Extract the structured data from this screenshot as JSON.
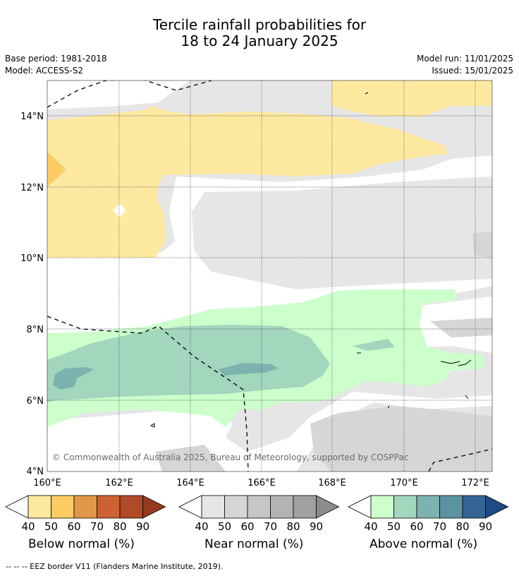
{
  "title": {
    "line1": "Tercile rainfall probabilities for",
    "line2": "18 to 24 January 2025"
  },
  "meta": {
    "base_period": "Base period: 1981-2018",
    "model": "Model: ACCESS-S2",
    "model_run": "Model run: 11/01/2025",
    "issued": "Issued: 15/01/2025"
  },
  "map": {
    "lat_labels": [
      "14°N",
      "12°N",
      "10°N",
      "8°N",
      "6°N",
      "4°N"
    ],
    "lon_labels": [
      "160°E",
      "162°E",
      "164°E",
      "166°E",
      "168°E",
      "170°E",
      "172°E"
    ],
    "copyright": "© Commonwealth of Australia 2025, Bureau of Meteorology, supported by COSPPac"
  },
  "colorbars": [
    {
      "name": "Below normal (%)",
      "ticks": [
        "40",
        "50",
        "60",
        "70",
        "80",
        "90"
      ],
      "colors": [
        "#fee9a1",
        "#fdcb63",
        "#e09747",
        "#cc6233",
        "#b04a28",
        "#953a1f"
      ]
    },
    {
      "name": "Near normal (%)",
      "ticks": [
        "40",
        "50",
        "60",
        "70",
        "80",
        "90"
      ],
      "colors": [
        "#e6e6e6",
        "#d6d6d6",
        "#c6c6c6",
        "#b3b3b3",
        "#a0a0a0",
        "#8c8c8c"
      ]
    },
    {
      "name": "Above normal (%)",
      "ticks": [
        "40",
        "50",
        "60",
        "70",
        "80",
        "90"
      ],
      "colors": [
        "#ccffcc",
        "#a2d6bd",
        "#7db3ae",
        "#5a94a0",
        "#356594",
        "#1d4c85"
      ]
    }
  ],
  "footer": "-- -- -- EEZ border V11 (Flanders Marine Institute, 2019)."
}
